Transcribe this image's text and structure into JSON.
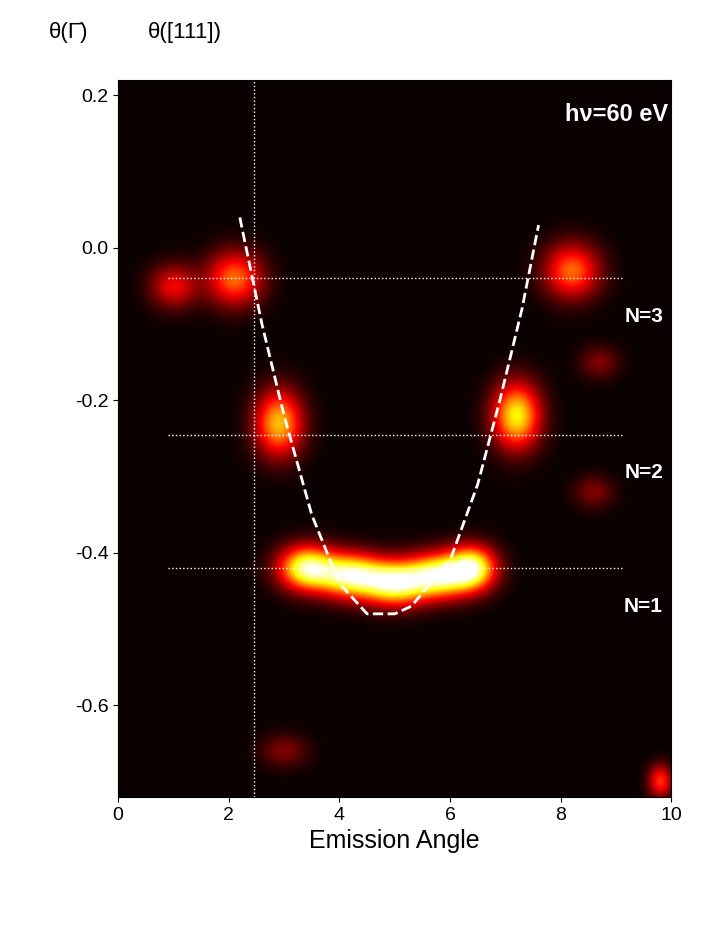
{
  "chart_data": {
    "type": "heatmap",
    "x_label": "Emission Angle",
    "top_labels": [
      "θ(Γ̄)",
      "θ([111])"
    ],
    "annotation": "hν=60 eV",
    "xlim": [
      0,
      10
    ],
    "xticks": [
      0,
      2,
      4,
      6,
      8,
      10
    ],
    "ylim": [
      -0.72,
      0.22
    ],
    "yticks": [
      -0.6,
      -0.4,
      -0.2,
      0.0,
      0.2
    ],
    "zlim": [
      0,
      1.15
    ],
    "reference_x": 2.45,
    "levels": [
      {
        "label": "N=3",
        "y": -0.04
      },
      {
        "label": "N=2",
        "y": -0.245
      },
      {
        "label": "N=1",
        "y": -0.42
      }
    ],
    "spots": [
      {
        "x": 2.1,
        "y": -0.04,
        "intensity": 0.6,
        "sx": 0.35,
        "sy": 0.025
      },
      {
        "x": 1.0,
        "y": -0.05,
        "intensity": 0.4,
        "sx": 0.3,
        "sy": 0.02
      },
      {
        "x": 8.2,
        "y": -0.03,
        "intensity": 0.6,
        "sx": 0.35,
        "sy": 0.025
      },
      {
        "x": 2.9,
        "y": -0.23,
        "intensity": 0.75,
        "sx": 0.3,
        "sy": 0.03
      },
      {
        "x": 7.2,
        "y": -0.22,
        "intensity": 0.85,
        "sx": 0.3,
        "sy": 0.03
      },
      {
        "x": 3.4,
        "y": -0.42,
        "intensity": 1.0,
        "sx": 0.35,
        "sy": 0.02
      },
      {
        "x": 4.2,
        "y": -0.43,
        "intensity": 1.0,
        "sx": 0.4,
        "sy": 0.02
      },
      {
        "x": 5.0,
        "y": -0.44,
        "intensity": 1.0,
        "sx": 0.4,
        "sy": 0.02
      },
      {
        "x": 5.8,
        "y": -0.43,
        "intensity": 1.0,
        "sx": 0.4,
        "sy": 0.02
      },
      {
        "x": 6.4,
        "y": -0.42,
        "intensity": 0.95,
        "sx": 0.3,
        "sy": 0.02
      },
      {
        "x": 3.0,
        "y": -0.66,
        "intensity": 0.2,
        "sx": 0.3,
        "sy": 0.015
      },
      {
        "x": 8.6,
        "y": -0.32,
        "intensity": 0.2,
        "sx": 0.25,
        "sy": 0.015
      },
      {
        "x": 8.7,
        "y": -0.15,
        "intensity": 0.2,
        "sx": 0.25,
        "sy": 0.015
      },
      {
        "x": 9.8,
        "y": -0.7,
        "intensity": 0.5,
        "sx": 0.15,
        "sy": 0.015
      }
    ],
    "curve": {
      "color": "#ffffff",
      "line_style": "dashed",
      "x": [
        2.2,
        2.6,
        3.0,
        3.5,
        4.0,
        4.5,
        5.0,
        5.3,
        6.0,
        6.5,
        6.9,
        7.3,
        7.6
      ],
      "y": [
        0.04,
        -0.1,
        -0.22,
        -0.35,
        -0.44,
        -0.48,
        -0.48,
        -0.47,
        -0.41,
        -0.31,
        -0.2,
        -0.08,
        0.03
      ]
    }
  }
}
